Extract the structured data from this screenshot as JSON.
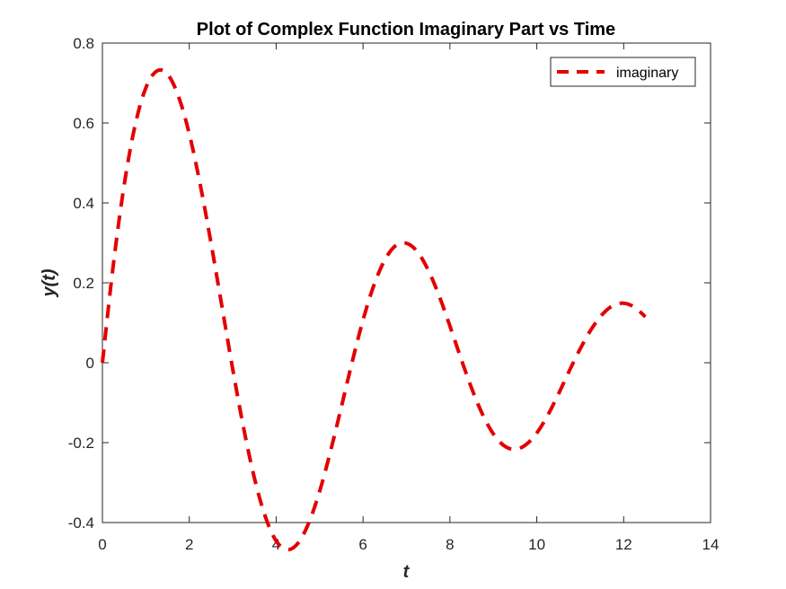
{
  "chart_data": {
    "type": "line",
    "title": "Plot of Complex Function Imaginary Part vs Time",
    "xlabel": "t",
    "ylabel": "y(t)",
    "xlim": [
      0,
      14
    ],
    "ylim": [
      -0.4,
      0.8
    ],
    "xticks": [
      0,
      2,
      4,
      6,
      8,
      10,
      12,
      14
    ],
    "yticks": [
      -0.4,
      -0.2,
      0,
      0.2,
      0.4,
      0.6,
      0.8
    ],
    "xtick_labels": [
      "0",
      "2",
      "4",
      "6",
      "8",
      "10",
      "12",
      "14"
    ],
    "ytick_labels": [
      "-0.4",
      "-0.2",
      "0",
      "0.2",
      "0.4",
      "0.6",
      "0.8"
    ],
    "grid": false,
    "legend_position": "top-right",
    "series": [
      {
        "name": "imaginary",
        "color": "#e30000",
        "line_style": "dashed",
        "x": [
          0,
          0.25,
          0.5,
          0.75,
          1.0,
          1.25,
          1.5,
          1.75,
          2.0,
          2.25,
          2.5,
          2.75,
          3.0,
          3.25,
          3.5,
          3.75,
          4.0,
          4.25,
          4.5,
          4.75,
          5.0,
          5.25,
          5.5,
          5.75,
          6.0,
          6.25,
          6.5,
          6.75,
          7.0,
          7.25,
          7.5,
          7.75,
          8.0,
          8.25,
          8.5,
          8.75,
          9.0,
          9.25,
          9.5,
          9.75,
          10.0,
          10.25,
          10.5,
          10.75,
          11.0,
          11.25,
          11.5,
          11.75,
          12.0,
          12.25,
          12.5
        ],
        "y": [
          0,
          0.244,
          0.444,
          0.593,
          0.688,
          0.73,
          0.722,
          0.667,
          0.573,
          0.447,
          0.3,
          0.142,
          -0.016,
          -0.163,
          -0.289,
          -0.385,
          -0.446,
          -0.468,
          -0.452,
          -0.401,
          -0.322,
          -0.222,
          -0.111,
          0.002,
          0.107,
          0.194,
          0.257,
          0.293,
          0.299,
          0.278,
          0.232,
          0.168,
          0.092,
          0.012,
          -0.064,
          -0.129,
          -0.178,
          -0.208,
          -0.217,
          -0.205,
          -0.176,
          -0.132,
          -0.078,
          -0.02,
          0.035,
          0.083,
          0.12,
          0.143,
          0.149,
          0.139,
          0.115
        ]
      }
    ]
  }
}
